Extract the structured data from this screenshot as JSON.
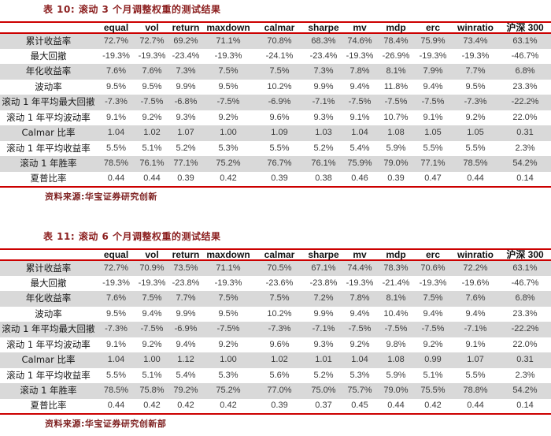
{
  "colors": {
    "accent_line_red": "#cc0000",
    "title_red": "#8b1e1e",
    "source_red": "#7d1f1f",
    "row_shade_gray": "#d9d9d9"
  },
  "tables": [
    {
      "title": "表 10: 滚动 3 个月调整权重的测试结果",
      "source": "资料来源:华宝证券研究创新",
      "columns": [
        "",
        "equal",
        "vol",
        "return",
        "maxdown",
        "calmar",
        "sharpe",
        "mv",
        "mdp",
        "erc",
        "winratio",
        "沪深 300"
      ],
      "rows": [
        {
          "label": "累计收益率",
          "values": [
            "72.7%",
            "72.7%",
            "69.2%",
            "71.1%",
            "70.8%",
            "68.3%",
            "74.6%",
            "78.4%",
            "75.9%",
            "73.4%",
            "63.1%"
          ]
        },
        {
          "label": "最大回撤",
          "values": [
            "-19.3%",
            "-19.3%",
            "-23.4%",
            "-19.3%",
            "-24.1%",
            "-23.4%",
            "-19.3%",
            "-26.9%",
            "-19.3%",
            "-19.3%",
            "-46.7%"
          ]
        },
        {
          "label": "年化收益率",
          "values": [
            "7.6%",
            "7.6%",
            "7.3%",
            "7.5%",
            "7.5%",
            "7.3%",
            "7.8%",
            "8.1%",
            "7.9%",
            "7.7%",
            "6.8%"
          ]
        },
        {
          "label": "波动率",
          "values": [
            "9.5%",
            "9.5%",
            "9.9%",
            "9.5%",
            "10.2%",
            "9.9%",
            "9.4%",
            "11.8%",
            "9.4%",
            "9.5%",
            "23.3%"
          ]
        },
        {
          "label": "滚动 1 年平均最大回撤",
          "values": [
            "-7.3%",
            "-7.5%",
            "-6.8%",
            "-7.5%",
            "-6.9%",
            "-7.1%",
            "-7.5%",
            "-7.5%",
            "-7.5%",
            "-7.3%",
            "-22.2%"
          ]
        },
        {
          "label": "滚动 1 年平均波动率",
          "values": [
            "9.1%",
            "9.2%",
            "9.3%",
            "9.2%",
            "9.6%",
            "9.3%",
            "9.1%",
            "10.7%",
            "9.1%",
            "9.2%",
            "22.0%"
          ]
        },
        {
          "label": "Calmar 比率",
          "values": [
            "1.04",
            "1.02",
            "1.07",
            "1.00",
            "1.09",
            "1.03",
            "1.04",
            "1.08",
            "1.05",
            "1.05",
            "0.31"
          ]
        },
        {
          "label": "滚动 1 年平均收益率",
          "values": [
            "5.5%",
            "5.1%",
            "5.2%",
            "5.3%",
            "5.5%",
            "5.2%",
            "5.4%",
            "5.9%",
            "5.5%",
            "5.5%",
            "2.3%"
          ]
        },
        {
          "label": "滚动 1 年胜率",
          "values": [
            "78.5%",
            "76.1%",
            "77.1%",
            "75.2%",
            "76.7%",
            "76.1%",
            "75.9%",
            "79.0%",
            "77.1%",
            "78.5%",
            "54.2%"
          ]
        },
        {
          "label": "夏普比率",
          "values": [
            "0.44",
            "0.44",
            "0.39",
            "0.42",
            "0.39",
            "0.38",
            "0.46",
            "0.39",
            "0.47",
            "0.44",
            "0.14"
          ]
        }
      ]
    },
    {
      "title": "表 11: 滚动 6 个月调整权重的测试结果",
      "source": "资料来源:华宝证券研究创新部",
      "columns": [
        "",
        "equal",
        "vol",
        "return",
        "maxdown",
        "calmar",
        "sharpe",
        "mv",
        "mdp",
        "erc",
        "winratio",
        "沪深 300"
      ],
      "rows": [
        {
          "label": "累计收益率",
          "values": [
            "72.7%",
            "70.9%",
            "73.5%",
            "71.1%",
            "70.5%",
            "67.1%",
            "74.4%",
            "78.3%",
            "70.6%",
            "72.2%",
            "63.1%"
          ]
        },
        {
          "label": "最大回撤",
          "values": [
            "-19.3%",
            "-19.3%",
            "-23.8%",
            "-19.3%",
            "-23.6%",
            "-23.8%",
            "-19.3%",
            "-21.4%",
            "-19.3%",
            "-19.6%",
            "-46.7%"
          ]
        },
        {
          "label": "年化收益率",
          "values": [
            "7.6%",
            "7.5%",
            "7.7%",
            "7.5%",
            "7.5%",
            "7.2%",
            "7.8%",
            "8.1%",
            "7.5%",
            "7.6%",
            "6.8%"
          ]
        },
        {
          "label": "波动率",
          "values": [
            "9.5%",
            "9.4%",
            "9.9%",
            "9.5%",
            "10.2%",
            "9.9%",
            "9.4%",
            "10.4%",
            "9.4%",
            "9.4%",
            "23.3%"
          ]
        },
        {
          "label": "滚动 1 年平均最大回撤",
          "values": [
            "-7.3%",
            "-7.5%",
            "-6.9%",
            "-7.5%",
            "-7.3%",
            "-7.1%",
            "-7.5%",
            "-7.5%",
            "-7.5%",
            "-7.1%",
            "-22.2%"
          ]
        },
        {
          "label": "滚动 1 年平均波动率",
          "values": [
            "9.1%",
            "9.2%",
            "9.4%",
            "9.2%",
            "9.6%",
            "9.3%",
            "9.2%",
            "9.8%",
            "9.2%",
            "9.1%",
            "22.0%"
          ]
        },
        {
          "label": "Calmar 比率",
          "values": [
            "1.04",
            "1.00",
            "1.12",
            "1.00",
            "1.02",
            "1.01",
            "1.04",
            "1.08",
            "0.99",
            "1.07",
            "0.31"
          ]
        },
        {
          "label": "滚动 1 年平均收益率",
          "values": [
            "5.5%",
            "5.1%",
            "5.4%",
            "5.3%",
            "5.6%",
            "5.2%",
            "5.3%",
            "5.9%",
            "5.1%",
            "5.5%",
            "2.3%"
          ]
        },
        {
          "label": "滚动 1 年胜率",
          "values": [
            "78.5%",
            "75.8%",
            "79.2%",
            "75.2%",
            "77.0%",
            "75.0%",
            "75.7%",
            "79.0%",
            "75.5%",
            "78.8%",
            "54.2%"
          ]
        },
        {
          "label": "夏普比率",
          "values": [
            "0.44",
            "0.42",
            "0.42",
            "0.42",
            "0.39",
            "0.37",
            "0.45",
            "0.44",
            "0.42",
            "0.44",
            "0.14"
          ]
        }
      ]
    }
  ]
}
